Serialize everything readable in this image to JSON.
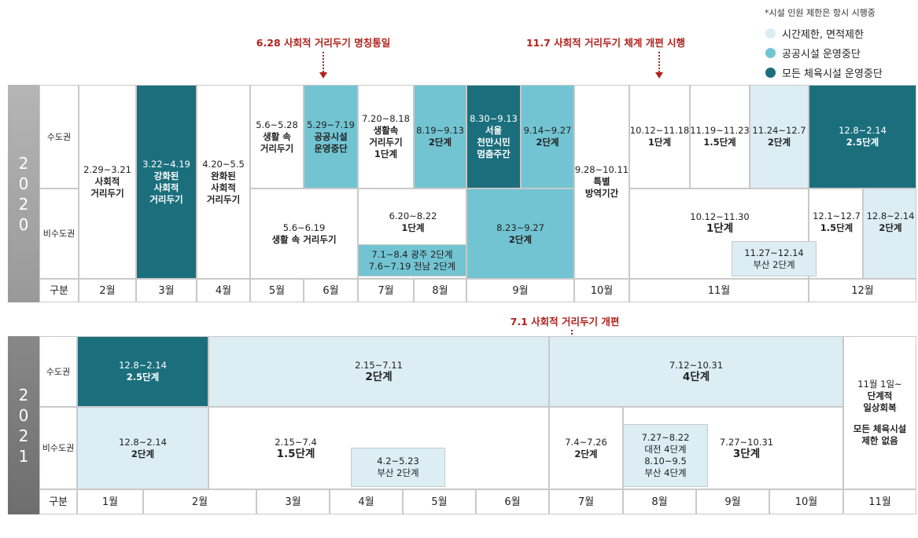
{
  "note": "*시설 인원 제한은 항시 시행중",
  "legend": [
    {
      "label": "시간제한, 면적제한"
    },
    {
      "label": "공공시설 운영중단"
    },
    {
      "label": "모든 체육시설 운영중단"
    }
  ],
  "annotations": [
    "6.28 사회적 거리두기 명칭통일",
    "11.7 사회적 거리두기 체계 개편 시행",
    "7.1 사회적 거리두기 개편"
  ],
  "tables": [
    {
      "year": "2020",
      "row_labels": [
        "수도권",
        "비수도권"
      ],
      "header": "구분",
      "months": [
        "2월",
        "3월",
        "4월",
        "5월",
        "6월",
        "7월",
        "8월",
        "9월",
        "10월",
        "11월",
        "12월"
      ],
      "cells": [
        {
          "lines": [
            "2.29~3.21",
            "사회적",
            "거리두기"
          ]
        },
        {
          "lines": [
            "3.22~4.19",
            "강화된",
            "사회적",
            "거리두기"
          ]
        },
        {
          "lines": [
            "4.20~5.5",
            "완화된",
            "사회적",
            "거리두기"
          ]
        },
        {
          "lines": [
            "5.6~5.28",
            "생활 속",
            "거리두기"
          ]
        },
        {
          "lines": [
            "5.29~7.19",
            "공공시설",
            "운영중단"
          ]
        },
        {
          "lines": [
            "7.20~8.18",
            "생활속",
            "거리두기",
            "1단계"
          ]
        },
        {
          "lines": [
            "8.19~9.13",
            "2단계"
          ]
        },
        {
          "lines": [
            "8.30~9.13",
            "서울",
            "천만시민",
            "멈춤주간"
          ]
        },
        {
          "lines": [
            "9.14~9.27",
            "2단계"
          ]
        },
        {
          "lines": [
            "9.28~10.11",
            "특별",
            "방역기간"
          ]
        },
        {
          "lines": [
            "10.12~11.18",
            "1단계"
          ]
        },
        {
          "lines": [
            "11.19~11.23",
            "1.5단계"
          ]
        },
        {
          "lines": [
            "11.24~12.7",
            "2단계"
          ]
        },
        {
          "lines": [
            "12.8~2.14",
            "2.5단계"
          ]
        },
        {
          "lines": [
            "5.6~6.19",
            "생활 속 거리두기"
          ]
        },
        {
          "lines": [
            "6.20~8.22",
            "1단계"
          ]
        },
        {
          "lines": [
            "7.1~8.4 광주 2단계",
            "7.6~7.19 전남 2단계"
          ]
        },
        {
          "lines": [
            "8.23~9.27",
            "2단계"
          ]
        },
        {
          "lines": [
            "10.12~11.30",
            "1단계"
          ]
        },
        {
          "lines": [
            "12.1~12.7",
            "1.5단계"
          ]
        },
        {
          "lines": [
            "12.8~2.14",
            "2단계"
          ]
        },
        {
          "lines": [
            "11.27~12.14",
            "부산 2단계"
          ]
        }
      ]
    },
    {
      "year": "2021",
      "row_labels": [
        "수도권",
        "비수도권"
      ],
      "header": "구분",
      "months": [
        "1월",
        "2월",
        "3월",
        "4월",
        "5월",
        "6월",
        "7월",
        "8월",
        "9월",
        "10월",
        "11월"
      ],
      "cells": [
        {
          "lines": [
            "12.8~2.14",
            "2.5단계"
          ]
        },
        {
          "lines": [
            "2.15~7.11",
            "2단계"
          ]
        },
        {
          "lines": [
            "7.12~10.31",
            "4단계"
          ]
        },
        {
          "lines": [
            "11월 1일~",
            "단계적",
            "일상회복",
            "모든 체육시설",
            "제한 없음"
          ]
        },
        {
          "lines": [
            "12.8~2.14",
            "2단계"
          ]
        },
        {
          "lines": [
            "2.15~7.4",
            "1.5단계"
          ]
        },
        {
          "lines": [
            "4.2~5.23",
            "부산 2단계"
          ]
        },
        {
          "lines": [
            "7.4~7.26",
            "2단계"
          ]
        },
        {
          "lines": [
            "7.27~10.31",
            "3단계"
          ]
        },
        {
          "lines": [
            "7.27~8.22",
            "대전 4단계",
            "8.10~9.5",
            "부산 4단계"
          ]
        }
      ]
    }
  ]
}
